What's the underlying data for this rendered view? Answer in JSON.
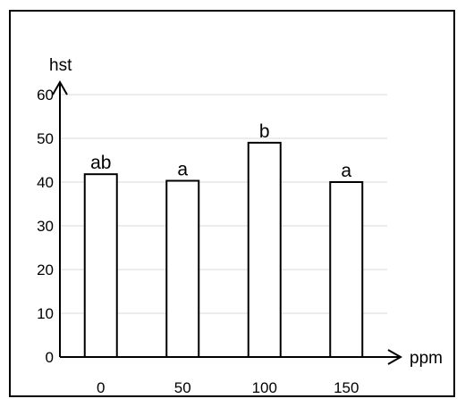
{
  "chart_data": {
    "type": "bar",
    "categories": [
      "0",
      "50",
      "100",
      "150"
    ],
    "values": [
      41.8,
      40.3,
      49.0,
      40.0
    ],
    "data_labels": [
      "ab",
      "a",
      "b",
      "a"
    ],
    "title": "",
    "xlabel": "ppm",
    "ylabel": "hst",
    "ylim": [
      0,
      60
    ],
    "yticks": [
      "0",
      "10",
      "20",
      "30",
      "40",
      "50",
      "60"
    ],
    "grid": true,
    "legend": "none"
  },
  "colors": {
    "bar_fill": "#ffffff",
    "bar_stroke": "#000000",
    "grid": "#d9d9d9",
    "axis": "#000000"
  }
}
